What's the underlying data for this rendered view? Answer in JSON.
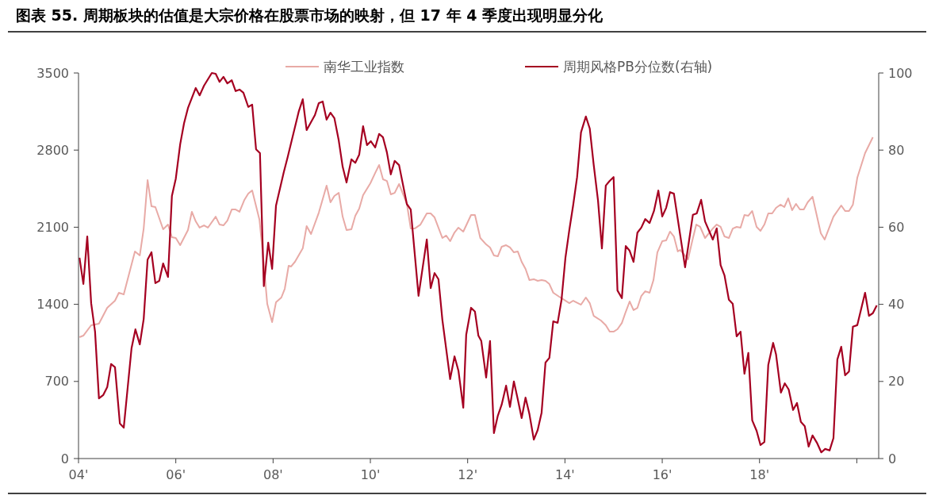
{
  "chart_data": {
    "type": "line",
    "title": "图表 55. 周期板块的估值是大宗价格在股票市场的映射，但 17 年 4 季度出现明显分化",
    "xlim": [
      4,
      20.45
    ],
    "xticks": [
      {
        "value": 4,
        "label": "04'"
      },
      {
        "value": 6,
        "label": "06'"
      },
      {
        "value": 8,
        "label": "08'"
      },
      {
        "value": 10,
        "label": "10'"
      },
      {
        "value": 12,
        "label": "12'"
      },
      {
        "value": 14,
        "label": "14'"
      },
      {
        "value": 16,
        "label": "16'"
      },
      {
        "value": 18,
        "label": "18'"
      },
      {
        "value": 20,
        "label": null
      }
    ],
    "ylim": [
      0,
      3500
    ],
    "yticks": [
      0,
      700,
      1400,
      2100,
      2800,
      3500
    ],
    "y2lim": [
      0,
      100
    ],
    "y2ticks": [
      0,
      20,
      40,
      60,
      80,
      100
    ],
    "legend": "top",
    "grid": false,
    "series": [
      {
        "name": "南华工业指数",
        "color": "#e8aaa6",
        "x": [
          4.02,
          4.1,
          4.26,
          4.42,
          4.59,
          4.75,
          4.83,
          4.93,
          5.16,
          5.26,
          5.34,
          5.42,
          5.5,
          5.58,
          5.74,
          5.84,
          5.92,
          6,
          6.09,
          6.25,
          6.33,
          6.41,
          6.49,
          6.58,
          6.66,
          6.82,
          6.9,
          6.98,
          7.06,
          7.15,
          7.23,
          7.31,
          7.41,
          7.49,
          7.57,
          7.72,
          7.8,
          7.88,
          7.98,
          8.06,
          8.17,
          8.24,
          8.32,
          8.37,
          8.45,
          8.61,
          8.69,
          8.78,
          8.94,
          9.1,
          9.18,
          9.26,
          9.35,
          9.43,
          9.51,
          9.61,
          9.69,
          9.77,
          9.85,
          10,
          10.1,
          10.18,
          10.26,
          10.34,
          10.42,
          10.5,
          10.59,
          10.75,
          10.83,
          10.91,
          11.03,
          11.16,
          11.24,
          11.32,
          11.48,
          11.56,
          11.64,
          11.73,
          11.81,
          11.91,
          12.07,
          12.15,
          12.26,
          12.38,
          12.46,
          12.54,
          12.62,
          12.7,
          12.79,
          12.87,
          12.95,
          13.03,
          13.11,
          13.19,
          13.27,
          13.36,
          13.44,
          13.52,
          13.6,
          13.68,
          13.76,
          13.93,
          14.09,
          14.17,
          14.33,
          14.43,
          14.51,
          14.59,
          14.74,
          14.84,
          14.92,
          15,
          15.08,
          15.17,
          15.25,
          15.33,
          15.41,
          15.49,
          15.57,
          15.65,
          15.74,
          15.82,
          15.9,
          16,
          16.08,
          16.16,
          16.24,
          16.32,
          16.37,
          16.53,
          16.62,
          16.7,
          16.78,
          16.88,
          17.04,
          17.12,
          17.2,
          17.28,
          17.37,
          17.45,
          17.53,
          17.61,
          17.69,
          17.77,
          17.85,
          17.94,
          18.02,
          18.1,
          18.18,
          18.26,
          18.34,
          18.43,
          18.51,
          18.59,
          18.67,
          18.75,
          18.83,
          18.91,
          18.99,
          19.09,
          19.26,
          19.34,
          19.52,
          19.68,
          19.76,
          19.84,
          19.92,
          20.01,
          20.17,
          20.33
        ],
        "values": [
          1102,
          1116,
          1210,
          1224,
          1368,
          1433,
          1505,
          1490,
          1880,
          1844,
          2088,
          2528,
          2290,
          2283,
          2081,
          2124,
          2009,
          2002,
          1937,
          2074,
          2240,
          2153,
          2096,
          2117,
          2096,
          2196,
          2124,
          2117,
          2160,
          2261,
          2261,
          2240,
          2348,
          2405,
          2434,
          2168,
          1808,
          1404,
          1239,
          1419,
          1462,
          1541,
          1750,
          1743,
          1786,
          1908,
          2110,
          2038,
          2232,
          2477,
          2326,
          2384,
          2412,
          2196,
          2074,
          2081,
          2204,
          2268,
          2391,
          2499,
          2593,
          2665,
          2535,
          2520,
          2398,
          2412,
          2492,
          2312,
          2088,
          2088,
          2124,
          2225,
          2225,
          2189,
          2002,
          2024,
          1973,
          2052,
          2096,
          2060,
          2211,
          2211,
          2002,
          1944,
          1916,
          1844,
          1836,
          1923,
          1937,
          1916,
          1872,
          1880,
          1786,
          1721,
          1620,
          1628,
          1613,
          1620,
          1613,
          1584,
          1505,
          1455,
          1411,
          1433,
          1397,
          1462,
          1411,
          1296,
          1253,
          1210,
          1152,
          1152,
          1174,
          1231,
          1332,
          1426,
          1347,
          1368,
          1476,
          1519,
          1505,
          1620,
          1872,
          1973,
          1980,
          2060,
          2016,
          1880,
          1894,
          1808,
          1980,
          2124,
          2103,
          2002,
          2088,
          2124,
          2103,
          2016,
          2002,
          2088,
          2103,
          2096,
          2211,
          2204,
          2247,
          2103,
          2067,
          2124,
          2225,
          2225,
          2276,
          2305,
          2283,
          2362,
          2254,
          2312,
          2261,
          2261,
          2326,
          2377,
          2045,
          1988,
          2196,
          2297,
          2247,
          2247,
          2305,
          2549,
          2773,
          2917
        ]
      },
      {
        "name": "周期风格PB分位数(右轴)",
        "color": "#a50021",
        "axis": "y2",
        "x": [
          4.02,
          4.1,
          4.18,
          4.26,
          4.34,
          4.42,
          4.51,
          4.59,
          4.67,
          4.75,
          4.85,
          4.93,
          5.09,
          5.17,
          5.26,
          5.34,
          5.42,
          5.5,
          5.58,
          5.66,
          5.74,
          5.84,
          5.92,
          6,
          6.09,
          6.17,
          6.25,
          6.41,
          6.49,
          6.58,
          6.74,
          6.82,
          6.9,
          6.98,
          7.06,
          7.15,
          7.23,
          7.31,
          7.39,
          7.49,
          7.57,
          7.65,
          7.73,
          7.81,
          7.9,
          7.98,
          8.06,
          8.22,
          8.3,
          8.53,
          8.61,
          8.69,
          8.86,
          8.94,
          9.02,
          9.1,
          9.18,
          9.26,
          9.35,
          9.43,
          9.51,
          9.61,
          9.69,
          9.77,
          9.85,
          9.93,
          10.01,
          10.1,
          10.18,
          10.26,
          10.34,
          10.42,
          10.5,
          10.59,
          10.75,
          10.83,
          10.99,
          11.16,
          11.24,
          11.32,
          11.4,
          11.48,
          11.64,
          11.73,
          11.81,
          11.91,
          11.97,
          12.07,
          12.15,
          12.22,
          12.28,
          12.38,
          12.46,
          12.54,
          12.62,
          12.7,
          12.79,
          12.87,
          12.95,
          13.03,
          13.11,
          13.19,
          13.27,
          13.36,
          13.44,
          13.52,
          13.6,
          13.68,
          13.76,
          13.85,
          13.93,
          14.01,
          14.09,
          14.17,
          14.25,
          14.33,
          14.43,
          14.51,
          14.59,
          14.68,
          14.76,
          14.84,
          14.92,
          15,
          15.08,
          15.17,
          15.25,
          15.33,
          15.41,
          15.49,
          15.57,
          15.65,
          15.74,
          15.83,
          15.92,
          16,
          16.08,
          16.16,
          16.24,
          16.47,
          16.63,
          16.71,
          16.8,
          16.88,
          17.04,
          17.12,
          17.2,
          17.28,
          17.37,
          17.45,
          17.53,
          17.61,
          17.69,
          17.77,
          17.85,
          17.94,
          18.02,
          18.1,
          18.18,
          18.28,
          18.34,
          18.44,
          18.52,
          18.6,
          18.69,
          18.77,
          18.85,
          18.93,
          19.01,
          19.09,
          19.18,
          19.27,
          19.35,
          19.44,
          19.52,
          19.6,
          19.68,
          19.76,
          19.84,
          19.92,
          20.01,
          20.17,
          20.25,
          20.33,
          20.41
        ],
        "values": [
          52.1,
          45.3,
          57.6,
          40.3,
          32.9,
          15.6,
          16.5,
          18.5,
          24.5,
          23.7,
          9.1,
          8,
          28.6,
          33.5,
          29.6,
          36.2,
          51.6,
          53.5,
          45.5,
          46.1,
          50.6,
          47.1,
          68.1,
          72.6,
          81.5,
          87,
          90.9,
          96.1,
          94.2,
          96.7,
          100,
          99.8,
          97.7,
          99,
          97.3,
          98.1,
          95.3,
          95.7,
          94.9,
          91.2,
          91.8,
          80.2,
          79.2,
          44.7,
          56,
          49.2,
          65.6,
          74.3,
          78.2,
          90.1,
          93.2,
          85.2,
          89.1,
          92.2,
          92.6,
          87.9,
          89.7,
          88.3,
          82.5,
          75.7,
          71.6,
          77.6,
          76.7,
          78.8,
          86.2,
          81.3,
          82.3,
          80.7,
          84.2,
          83.3,
          79.4,
          73.7,
          77.2,
          76.1,
          66,
          64.6,
          42.2,
          56.8,
          44.2,
          48.1,
          46.5,
          36,
          20.6,
          26.5,
          22.8,
          13.2,
          32.1,
          39.1,
          38.1,
          31.9,
          30.5,
          21,
          30.5,
          6.6,
          11.1,
          14,
          18.9,
          13.4,
          20,
          15.4,
          10.5,
          15.8,
          11.5,
          4.9,
          7.4,
          11.9,
          24.9,
          26.1,
          35.6,
          35.2,
          41.2,
          52.1,
          59.3,
          65.8,
          73,
          84.6,
          88.7,
          85.6,
          76.3,
          66.9,
          54.5,
          70.8,
          72,
          73,
          43.6,
          41.6,
          55.1,
          53.9,
          51,
          58.6,
          59.9,
          62.1,
          61.1,
          64.2,
          69.5,
          62.8,
          65,
          69.1,
          68.7,
          49.6,
          63.2,
          63.6,
          67.1,
          61.5,
          56.8,
          59.7,
          50.2,
          47.5,
          41.2,
          40.1,
          31.7,
          32.9,
          22,
          27.4,
          9.9,
          7.2,
          3.5,
          4.3,
          24.3,
          30,
          27,
          17.1,
          19.5,
          17.9,
          12.6,
          14.4,
          9.5,
          8.4,
          3.1,
          6,
          4.1,
          1.6,
          2.5,
          2.1,
          5.3,
          25.7,
          29,
          21.6,
          22.6,
          34.2,
          34.6,
          43,
          37,
          37.7,
          39.7
        ]
      }
    ]
  }
}
